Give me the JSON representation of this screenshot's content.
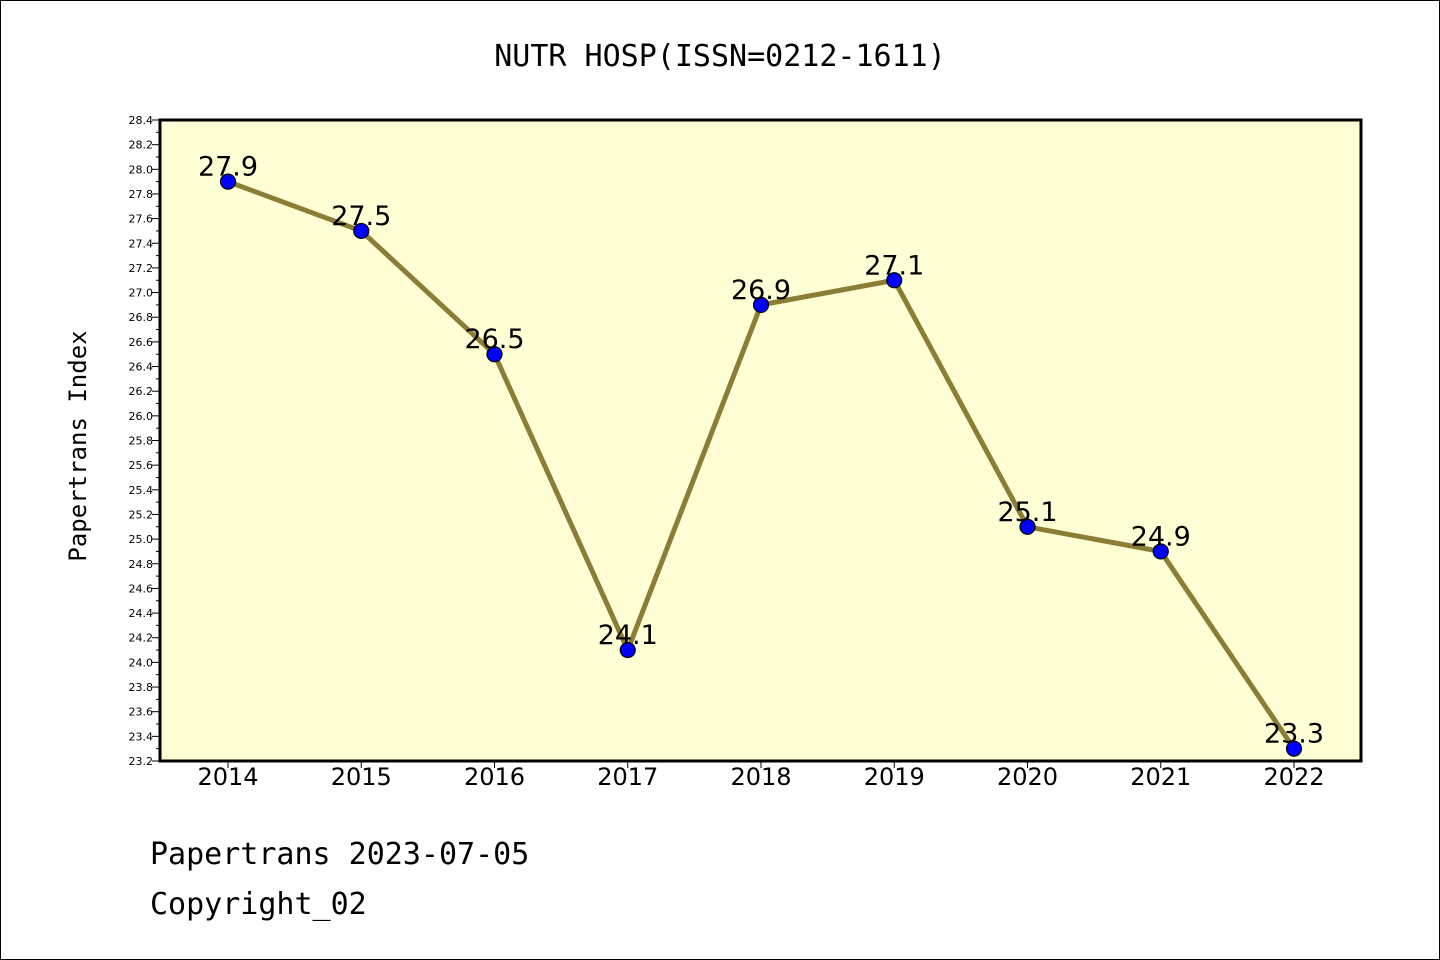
{
  "chart_data": {
    "type": "line",
    "title": "NUTR HOSP(ISSN=0212-1611)",
    "ylabel": "Papertrans Index",
    "xlabel": "",
    "categories": [
      "2014",
      "2015",
      "2016",
      "2017",
      "2018",
      "2019",
      "2020",
      "2021",
      "2022"
    ],
    "values": [
      27.9,
      27.5,
      26.5,
      24.1,
      26.9,
      27.1,
      25.1,
      24.9,
      23.3
    ],
    "data_labels": [
      "27.9",
      "27.5",
      "26.5",
      "24.1",
      "26.9",
      "27.1",
      "25.1",
      "24.9",
      "23.3"
    ],
    "ylim": [
      23.2,
      28.4
    ],
    "ytick_step": 0.2,
    "grid": false,
    "legend": "none",
    "colors": {
      "plot_background": "#ffffd5",
      "line": "#8b7d35",
      "marker": "#0000ff",
      "frame": "#000000"
    }
  },
  "footer": {
    "line1": "Papertrans 2023-07-05",
    "line2": "Copyright_02"
  }
}
